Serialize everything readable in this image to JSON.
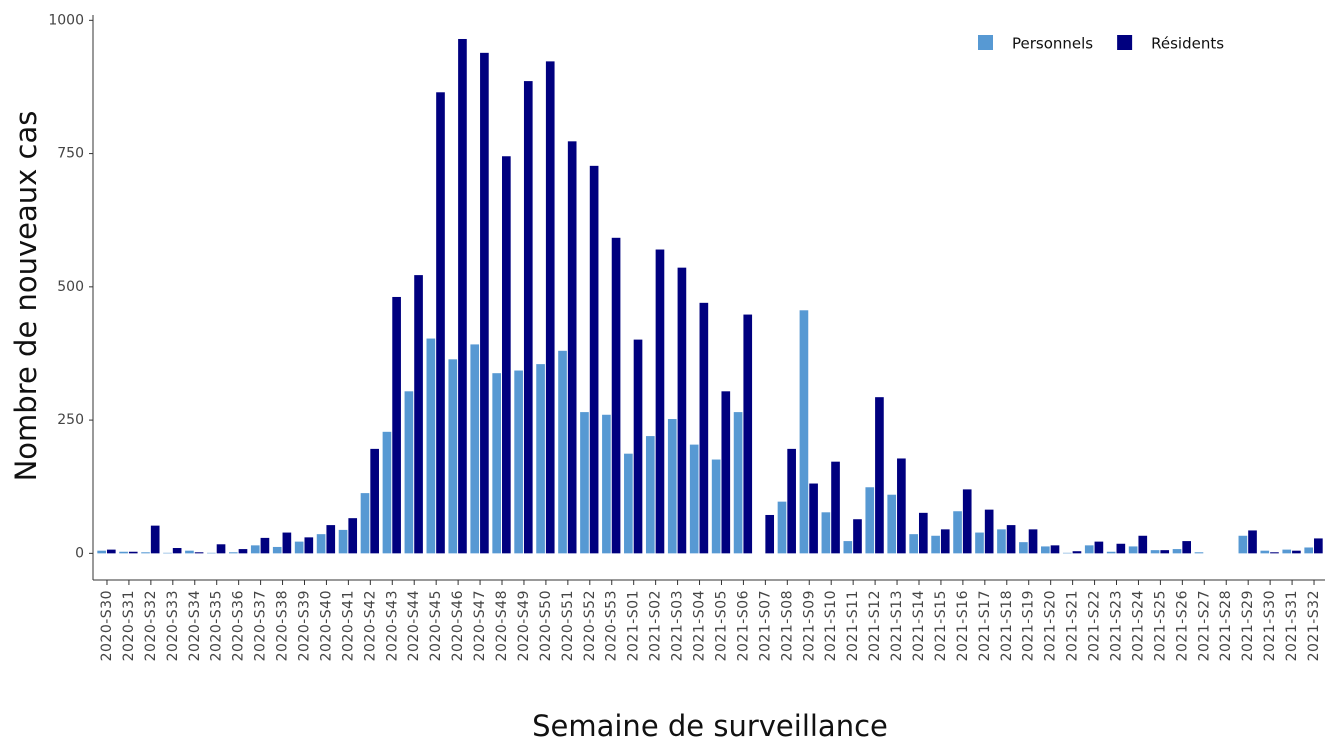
{
  "chart_data": {
    "type": "bar",
    "x_label": "Semaine de surveillance",
    "y_label": "Nombre de nouveaux cas",
    "categories": [
      "2020-S30",
      "2020-S31",
      "2020-S32",
      "2020-S33",
      "2020-S34",
      "2020-S35",
      "2020-S36",
      "2020-S37",
      "2020-S38",
      "2020-S39",
      "2020-S40",
      "2020-S41",
      "2020-S42",
      "2020-S43",
      "2020-S44",
      "2020-S45",
      "2020-S46",
      "2020-S47",
      "2020-S48",
      "2020-S49",
      "2020-S50",
      "2020-S51",
      "2020-S52",
      "2020-S53",
      "2021-S01",
      "2021-S02",
      "2021-S03",
      "2021-S04",
      "2021-S05",
      "2021-S06",
      "2021-S07",
      "2021-S08",
      "2021-S09",
      "2021-S10",
      "2021-S11",
      "2021-S12",
      "2021-S13",
      "2021-S14",
      "2021-S15",
      "2021-S16",
      "2021-S17",
      "2021-S18",
      "2021-S19",
      "2021-S20",
      "2021-S21",
      "2021-S22",
      "2021-S23",
      "2021-S24",
      "2021-S25",
      "2021-S26",
      "2021-S27",
      "2021-S28",
      "2021-S29",
      "2021-S30",
      "2021-S31",
      "2021-S32"
    ],
    "series": [
      {
        "name": "Personnels",
        "color": "#5799d3",
        "values": [
          5,
          3,
          2,
          1,
          5,
          1,
          2,
          15,
          12,
          22,
          36,
          44,
          113,
          228,
          304,
          403,
          364,
          392,
          338,
          343,
          355,
          380,
          265,
          260,
          187,
          220,
          252,
          204,
          176,
          265,
          0,
          97,
          456,
          77,
          23,
          124,
          110,
          36,
          33,
          79,
          39,
          45,
          21,
          13,
          1,
          15,
          3,
          13,
          6,
          8,
          2,
          0,
          33,
          5,
          7,
          11
        ]
      },
      {
        "name": "Résidents",
        "color": "#00007f",
        "values": [
          7,
          3,
          52,
          10,
          2,
          17,
          8,
          29,
          39,
          30,
          53,
          66,
          196,
          481,
          522,
          865,
          965,
          939,
          745,
          886,
          923,
          773,
          727,
          592,
          401,
          570,
          536,
          470,
          304,
          448,
          72,
          196,
          131,
          172,
          64,
          293,
          178,
          76,
          45,
          120,
          82,
          53,
          45,
          15,
          4,
          22,
          18,
          33,
          6,
          23,
          0,
          0,
          43,
          2,
          5,
          28
        ]
      }
    ],
    "ylim": [
      -50,
      1010
    ],
    "yticks": [
      0,
      250,
      500,
      750,
      1000
    ],
    "legend": "top-right"
  }
}
